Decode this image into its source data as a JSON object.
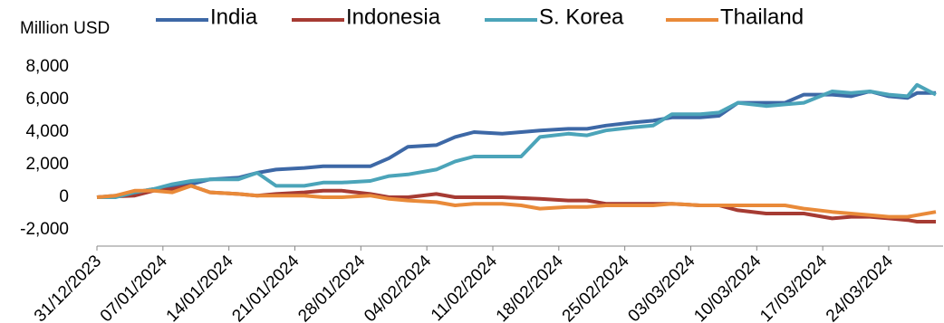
{
  "chart_data": {
    "type": "line",
    "y_label": "Million USD",
    "x": [
      "31/12/2023",
      "02/01/2024",
      "04/01/2024",
      "06/01/2024",
      "08/01/2024",
      "10/01/2024",
      "12/01/2024",
      "15/01/2024",
      "17/01/2024",
      "19/01/2024",
      "22/01/2024",
      "24/01/2024",
      "26/01/2024",
      "29/01/2024",
      "31/01/2024",
      "02/02/2024",
      "05/02/2024",
      "07/02/2024",
      "09/02/2024",
      "12/02/2024",
      "14/02/2024",
      "16/02/2024",
      "19/02/2024",
      "21/02/2024",
      "23/02/2024",
      "26/02/2024",
      "28/02/2024",
      "01/03/2024",
      "04/03/2024",
      "06/03/2024",
      "08/03/2024",
      "11/03/2024",
      "13/03/2024",
      "15/03/2024",
      "18/03/2024",
      "20/03/2024",
      "22/03/2024",
      "24/03/2024",
      "26/03/2024",
      "27/03/2024",
      "29/03/2024"
    ],
    "series": [
      {
        "name": "India",
        "color": "#3d68a6",
        "values": [
          0,
          100,
          300,
          500,
          600,
          800,
          1100,
          1200,
          1500,
          1700,
          1800,
          1900,
          1900,
          1900,
          2400,
          3100,
          3200,
          3700,
          4000,
          3900,
          4000,
          4100,
          4200,
          4200,
          4400,
          4600,
          4700,
          4900,
          4900,
          5000,
          5800,
          5800,
          5800,
          6300,
          6300,
          6200,
          6500,
          6200,
          6100,
          6400,
          6400
        ]
      },
      {
        "name": "Indonesia",
        "color": "#a63b33",
        "values": [
          0,
          50,
          100,
          400,
          500,
          700,
          300,
          200,
          100,
          200,
          300,
          400,
          400,
          200,
          0,
          0,
          200,
          0,
          0,
          0,
          -50,
          -100,
          -200,
          -200,
          -400,
          -400,
          -400,
          -400,
          -500,
          -500,
          -800,
          -1000,
          -1000,
          -1000,
          -1300,
          -1200,
          -1200,
          -1300,
          -1400,
          -1500,
          -1500
        ]
      },
      {
        "name": "S. Korea",
        "color": "#4ba4b9",
        "values": [
          0,
          0,
          300,
          500,
          800,
          1000,
          1100,
          1100,
          1500,
          700,
          700,
          900,
          900,
          1000,
          1300,
          1400,
          1700,
          2200,
          2500,
          2500,
          2500,
          3700,
          3900,
          3800,
          4100,
          4300,
          4400,
          5100,
          5100,
          5200,
          5800,
          5600,
          5700,
          5800,
          6500,
          6400,
          6500,
          6300,
          6200,
          6900,
          6300
        ]
      },
      {
        "name": "Thailand",
        "color": "#e98a39",
        "values": [
          0,
          100,
          400,
          400,
          300,
          700,
          300,
          200,
          100,
          100,
          100,
          0,
          0,
          100,
          -100,
          -200,
          -300,
          -500,
          -400,
          -400,
          -500,
          -700,
          -600,
          -600,
          -500,
          -500,
          -500,
          -400,
          -500,
          -500,
          -500,
          -500,
          -500,
          -700,
          -900,
          -1000,
          -1100,
          -1200,
          -1200,
          -1100,
          -900
        ]
      }
    ],
    "xlim": [
      "31/12/2023",
      "29/03/2024"
    ],
    "xticks": [
      "31/12/2023",
      "07/01/2024",
      "14/01/2024",
      "21/01/2024",
      "28/01/2024",
      "04/02/2024",
      "11/02/2024",
      "18/02/2024",
      "25/02/2024",
      "03/03/2024",
      "10/03/2024",
      "17/03/2024",
      "24/03/2024"
    ],
    "ylim": [
      -3000,
      9000
    ],
    "yticks": [
      {
        "value": -2000,
        "label": "-2,000"
      },
      0,
      {
        "value": 2000,
        "label": "2,000"
      },
      {
        "value": 4000,
        "label": "4,000"
      },
      {
        "value": 6000,
        "label": "6,000"
      },
      {
        "value": 8000,
        "label": "8,000"
      }
    ],
    "legend": "top"
  }
}
